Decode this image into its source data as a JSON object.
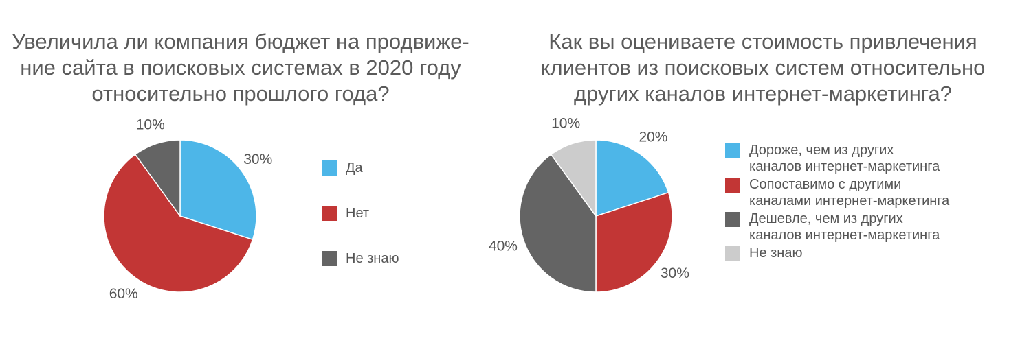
{
  "chart_data": [
    {
      "type": "pie",
      "title_lines": [
        "Увеличила ли компания бюджет на продвиже-",
        "ние сайта в поисковых системах в 2020 году",
        "относительно прошлого года?"
      ],
      "categories": [
        "Да",
        "Нет",
        "Не знаю"
      ],
      "values": [
        30,
        60,
        10
      ],
      "value_labels": [
        "30%",
        "60%",
        "10%"
      ],
      "colors": [
        "#4db6e8",
        "#c23635",
        "#646464"
      ],
      "legend_position": "right",
      "legend": [
        {
          "lines": [
            "Да"
          ],
          "color": "#4db6e8"
        },
        {
          "lines": [
            "Нет"
          ],
          "color": "#c23635"
        },
        {
          "lines": [
            "Не знаю"
          ],
          "color": "#646464"
        }
      ]
    },
    {
      "type": "pie",
      "title_lines": [
        "Как вы оцениваете стоимость привлечения",
        "клиентов из поисковых систем относительно",
        "других каналов интернет-маркетинга?"
      ],
      "categories": [
        "Дороже, чем из других каналов интернет-маркетинга",
        "Сопоставимо с другими каналами интернет-маркетинга",
        "Дешевле, чем из других каналов интернет-маркетинга",
        "Не знаю"
      ],
      "values": [
        20,
        30,
        40,
        10
      ],
      "value_labels": [
        "20%",
        "30%",
        "40%",
        "10%"
      ],
      "colors": [
        "#4db6e8",
        "#c23635",
        "#646464",
        "#cccccc"
      ],
      "legend_position": "right",
      "legend": [
        {
          "lines": [
            "Дороже, чем из других",
            "каналов интернет-маркетинга"
          ],
          "color": "#4db6e8"
        },
        {
          "lines": [
            "Сопоставимо с другими",
            "каналами интернет-маркетинга"
          ],
          "color": "#c23635"
        },
        {
          "lines": [
            "Дешевле, чем из других",
            "каналов интернет-маркетинга"
          ],
          "color": "#646464"
        },
        {
          "lines": [
            "Не знаю"
          ],
          "color": "#cccccc"
        }
      ]
    }
  ]
}
